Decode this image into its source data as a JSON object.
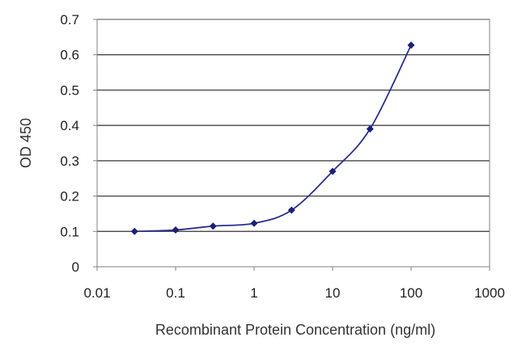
{
  "chart_data": {
    "type": "line",
    "title": "",
    "xlabel": "Recombinant Protein Concentration (ng/ml)",
    "ylabel": "OD 450",
    "x_scale": "log",
    "xlim": [
      0.01,
      1000
    ],
    "ylim": [
      0,
      0.7
    ],
    "x_ticks": [
      "0.01",
      "0.1",
      "1",
      "10",
      "100",
      "1000"
    ],
    "y_ticks": [
      "0",
      "0.1",
      "0.2",
      "0.3",
      "0.4",
      "0.5",
      "0.6",
      "0.7"
    ],
    "grid": "horizontal",
    "legend": "none",
    "series": [
      {
        "color": "#2b2f8f",
        "points": [
          {
            "x": 0.03,
            "y": 0.1
          },
          {
            "x": 0.1,
            "y": 0.104
          },
          {
            "x": 0.3,
            "y": 0.115
          },
          {
            "x": 1,
            "y": 0.123
          },
          {
            "x": 3,
            "y": 0.16
          },
          {
            "x": 10,
            "y": 0.27
          },
          {
            "x": 30,
            "y": 0.39
          },
          {
            "x": 100,
            "y": 0.627
          }
        ]
      }
    ]
  }
}
